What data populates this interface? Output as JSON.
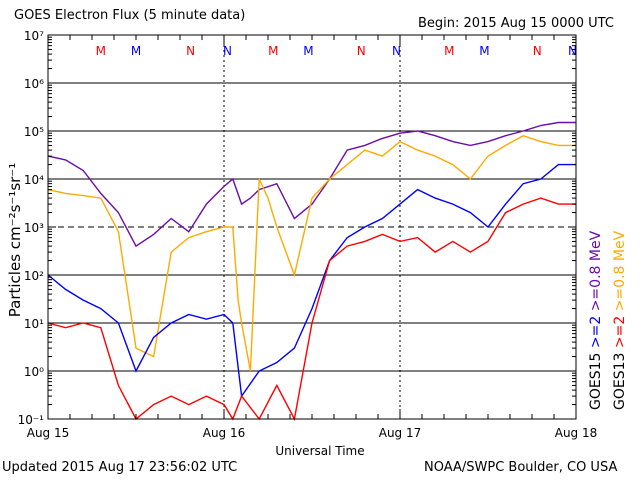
{
  "header": {
    "title": "GOES Electron Flux (5 minute data)",
    "begin": "Begin: 2015 Aug 15 0000 UTC"
  },
  "footer": {
    "updated": "Updated 2015 Aug 17 23:56:02 UTC",
    "credit": "NOAA/SWPC Boulder, CO USA"
  },
  "colors": {
    "goes15_2mev": "#0000ff",
    "goes15_08mev": "#6a0dad",
    "goes13_2mev": "#ff0000",
    "goes13_08mev": "#ffaa00",
    "marker_m": "#ff0000",
    "marker_n_alt": "#0000ff"
  },
  "chart_data": {
    "type": "line",
    "title": "GOES Electron Flux (5 minute data)",
    "xlabel": "Universal Time",
    "ylabel": "Particles cm⁻²s⁻¹sr⁻¹",
    "x_ticks": [
      "Aug 15",
      "Aug 16",
      "Aug 17",
      "Aug 18"
    ],
    "xlim_days": [
      0,
      3
    ],
    "y_scale": "log",
    "ylim": [
      0.1,
      10000000
    ],
    "y_ticks": [
      "10⁻¹",
      "10⁰",
      "10¹",
      "10²",
      "10³",
      "10⁴",
      "10⁵",
      "10⁶",
      "10⁷"
    ],
    "threshold_line": 1000,
    "markers": [
      {
        "label": "M",
        "color": "red",
        "day": 0.3
      },
      {
        "label": "M",
        "color": "blue",
        "day": 0.5
      },
      {
        "label": "N",
        "color": "red",
        "day": 0.81
      },
      {
        "label": "N",
        "color": "blue",
        "day": 1.02
      },
      {
        "label": "M",
        "color": "red",
        "day": 1.28
      },
      {
        "label": "M",
        "color": "blue",
        "day": 1.48
      },
      {
        "label": "N",
        "color": "red",
        "day": 1.78
      },
      {
        "label": "N",
        "color": "blue",
        "day": 1.98
      },
      {
        "label": "M",
        "color": "red",
        "day": 2.28
      },
      {
        "label": "M",
        "color": "blue",
        "day": 2.48
      },
      {
        "label": "N",
        "color": "red",
        "day": 2.78
      },
      {
        "label": "N",
        "color": "blue",
        "day": 2.98
      }
    ],
    "legend": [
      {
        "sat": "GOES15",
        "items": [
          {
            "label": ">=2",
            "color": "blue"
          },
          {
            "label": ">=0.8 MeV",
            "color": "purple"
          }
        ]
      },
      {
        "sat": "GOES13",
        "items": [
          {
            "label": ">=2",
            "color": "red"
          },
          {
            "label": ">=0.8 MeV",
            "color": "orange"
          }
        ]
      }
    ],
    "series": [
      {
        "name": "GOES15 >=0.8 MeV",
        "color": "#6a0dad",
        "x": [
          0.0,
          0.1,
          0.2,
          0.3,
          0.4,
          0.5,
          0.6,
          0.7,
          0.8,
          0.9,
          1.0,
          1.05,
          1.1,
          1.15,
          1.2,
          1.3,
          1.4,
          1.5,
          1.6,
          1.7,
          1.8,
          1.9,
          2.0,
          2.1,
          2.2,
          2.3,
          2.4,
          2.5,
          2.6,
          2.7,
          2.8,
          2.9,
          3.0
        ],
        "y": [
          30000,
          25000,
          15000,
          5000,
          2000,
          400,
          700,
          1500,
          800,
          3000,
          7000,
          10000,
          3000,
          4000,
          6000,
          8000,
          1500,
          3000,
          10000,
          40000,
          50000,
          70000,
          90000,
          100000,
          80000,
          60000,
          50000,
          60000,
          80000,
          100000,
          130000,
          150000,
          150000
        ]
      },
      {
        "name": "GOES13 >=0.8 MeV",
        "color": "#ffaa00",
        "x": [
          0.0,
          0.1,
          0.2,
          0.3,
          0.4,
          0.5,
          0.6,
          0.7,
          0.8,
          0.9,
          1.0,
          1.05,
          1.08,
          1.1,
          1.15,
          1.2,
          1.25,
          1.3,
          1.4,
          1.5,
          1.6,
          1.7,
          1.8,
          1.9,
          2.0,
          2.1,
          2.2,
          2.3,
          2.4,
          2.5,
          2.6,
          2.7,
          2.8,
          2.9,
          3.0
        ],
        "y": [
          6000,
          5000,
          4500,
          4000,
          800,
          3,
          2,
          300,
          600,
          800,
          1000,
          1000,
          30,
          10,
          1,
          10000,
          4000,
          1000,
          100,
          4000,
          10000,
          20000,
          40000,
          30000,
          60000,
          40000,
          30000,
          20000,
          10000,
          30000,
          50000,
          80000,
          60000,
          50000,
          50000
        ]
      },
      {
        "name": "GOES15 >=2",
        "color": "#0000ff",
        "x": [
          0.0,
          0.1,
          0.2,
          0.3,
          0.4,
          0.5,
          0.6,
          0.7,
          0.8,
          0.9,
          1.0,
          1.05,
          1.1,
          1.2,
          1.3,
          1.4,
          1.5,
          1.6,
          1.7,
          1.8,
          1.9,
          2.0,
          2.1,
          2.2,
          2.3,
          2.4,
          2.5,
          2.6,
          2.7,
          2.8,
          2.9,
          3.0
        ],
        "y": [
          100,
          50,
          30,
          20,
          10,
          1,
          5,
          10,
          15,
          12,
          15,
          10,
          0.3,
          1,
          1.5,
          3,
          20,
          200,
          600,
          1000,
          1500,
          3000,
          6000,
          4000,
          3000,
          2000,
          1000,
          3000,
          8000,
          10000,
          20000,
          20000
        ]
      },
      {
        "name": "GOES13 >=2",
        "color": "#ff0000",
        "x": [
          0.0,
          0.1,
          0.2,
          0.3,
          0.4,
          0.5,
          0.6,
          0.7,
          0.8,
          0.9,
          1.0,
          1.05,
          1.1,
          1.2,
          1.3,
          1.4,
          1.5,
          1.6,
          1.7,
          1.8,
          1.9,
          2.0,
          2.1,
          2.2,
          2.3,
          2.4,
          2.5,
          2.6,
          2.7,
          2.8,
          2.9,
          3.0
        ],
        "y": [
          10,
          8,
          10,
          8,
          0.5,
          0.1,
          0.2,
          0.3,
          0.2,
          0.3,
          0.2,
          0.1,
          0.3,
          0.1,
          0.5,
          0.1,
          10,
          200,
          400,
          500,
          700,
          500,
          600,
          300,
          500,
          300,
          500,
          2000,
          3000,
          4000,
          3000,
          3000
        ]
      }
    ]
  }
}
